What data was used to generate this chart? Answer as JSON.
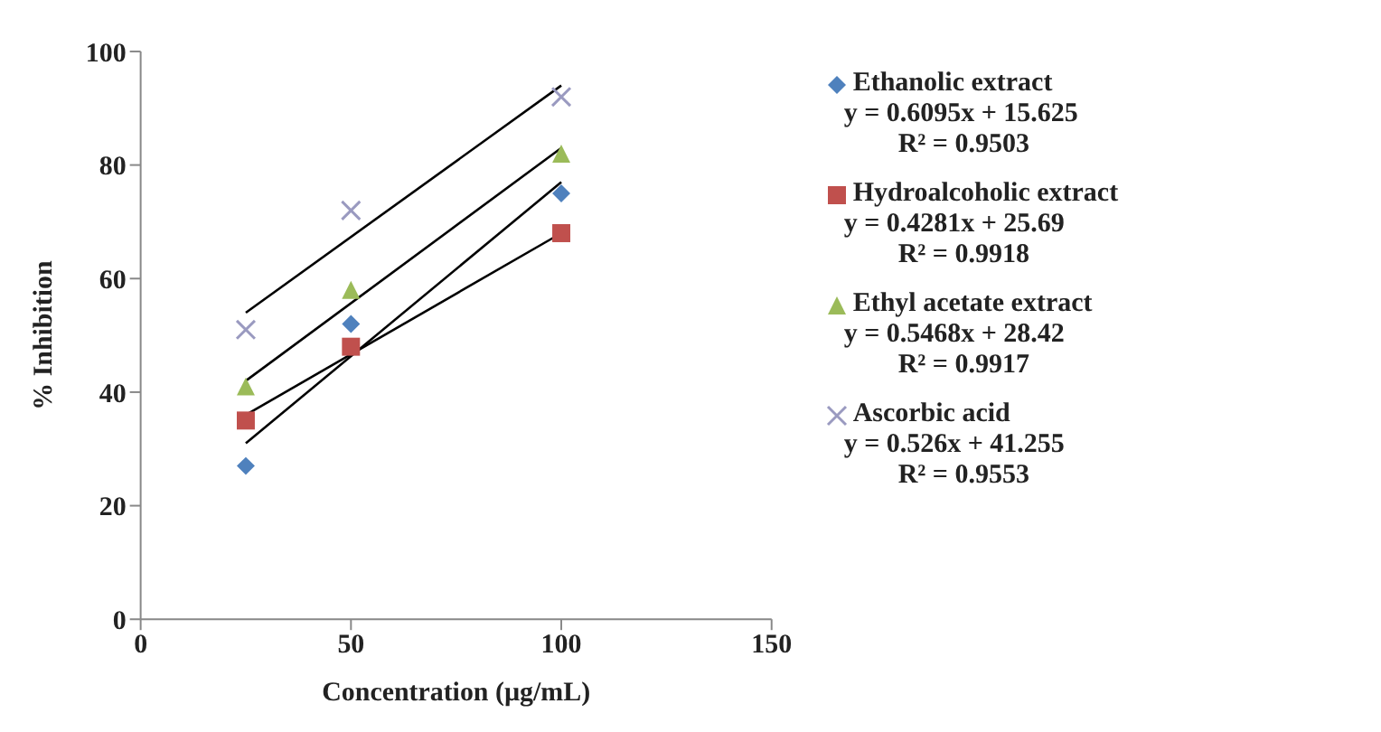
{
  "chart_data": {
    "type": "scatter",
    "xlabel": "Concentration (µg/mL)",
    "ylabel": "% Inhibition",
    "xlim": [
      0,
      150
    ],
    "xticks": [
      0,
      50,
      100,
      150
    ],
    "ylim": [
      0,
      100
    ],
    "yticks": [
      0,
      20,
      40,
      60,
      80,
      100
    ],
    "grid": false,
    "legend": "right",
    "series": [
      {
        "name": "Ethanolic extract",
        "color": "#4f81bd",
        "marker": "diamond",
        "x": [
          25,
          50,
          100
        ],
        "values": [
          27,
          52,
          75
        ]
      },
      {
        "name": "Hydroalcoholic extract",
        "color": "#c0504d",
        "marker": "square",
        "x": [
          25,
          50,
          100
        ],
        "values": [
          35,
          48,
          68
        ]
      },
      {
        "name": "Ethyl acetate extract",
        "color": "#9bbb59",
        "marker": "triangle",
        "x": [
          25,
          50,
          100
        ],
        "values": [
          41,
          58,
          82
        ]
      },
      {
        "name": "Ascorbic acid",
        "color": "#9a9ac0",
        "marker": "cross",
        "x": [
          25,
          50,
          100
        ],
        "values": [
          51,
          72,
          92
        ]
      },
      {
        "type": "line",
        "color": "#000000",
        "marker": "none",
        "x": [
          25,
          100
        ],
        "values": [
          31,
          77
        ]
      },
      {
        "type": "line",
        "color": "#000000",
        "marker": "none",
        "x": [
          25,
          100
        ],
        "values": [
          36,
          68
        ]
      },
      {
        "type": "line",
        "color": "#000000",
        "marker": "none",
        "x": [
          25,
          100
        ],
        "values": [
          42,
          83
        ]
      },
      {
        "type": "line",
        "color": "#000000",
        "marker": "none",
        "x": [
          25,
          100
        ],
        "values": [
          54,
          94
        ]
      }
    ],
    "annotations": [
      "y = 0.6095x + 15.625",
      "R² = 0.9503",
      "y = 0.4281x + 25.69",
      "R² = 0.9918",
      "y = 0.5468x + 28.42",
      "R² = 0.9917",
      "y = 0.526x + 41.255",
      "R² = 0.9553"
    ]
  }
}
